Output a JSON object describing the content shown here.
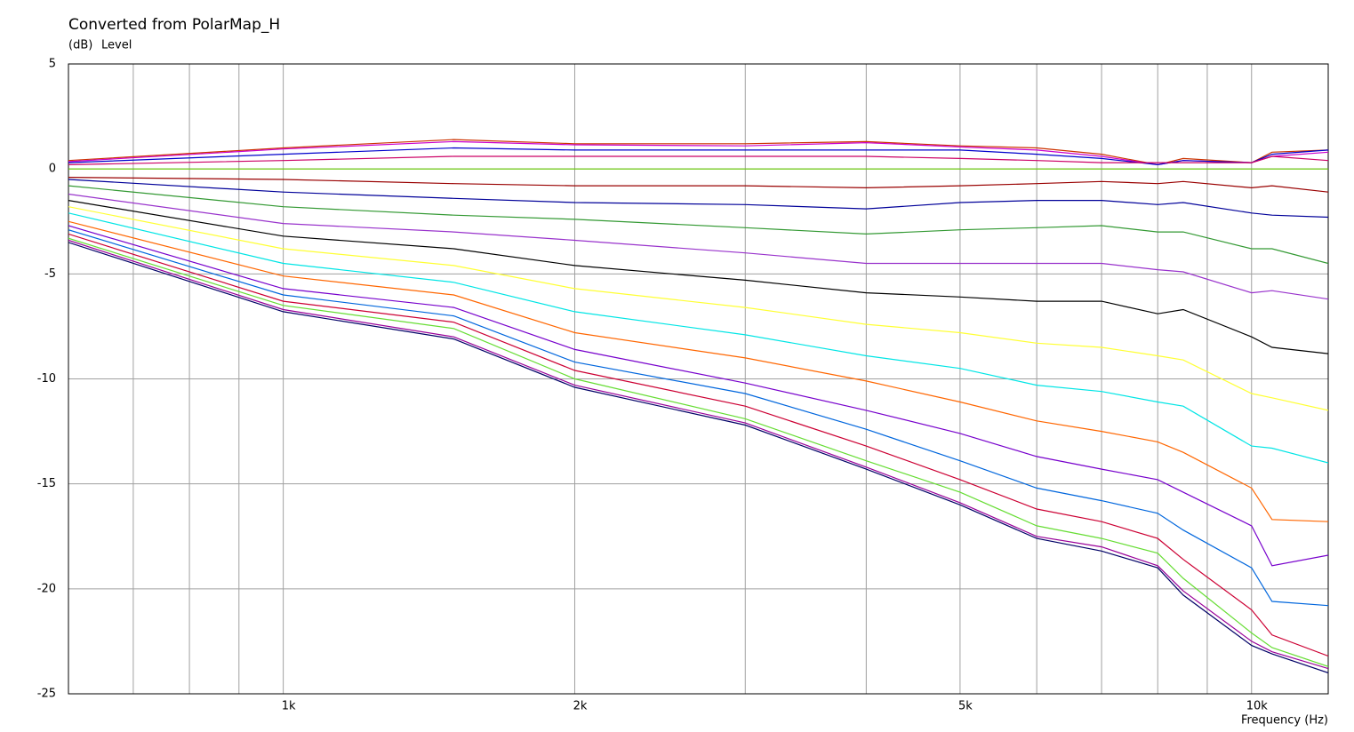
{
  "chart_data": {
    "type": "line",
    "title": "Converted from PolarMap_H",
    "y_unit": "(dB)",
    "y_label": "Level",
    "x_label": "Frequency  (Hz)",
    "xscale": "log",
    "xlim": [
      600,
      12000
    ],
    "xticks": [
      {
        "value": 1000,
        "label": "1k"
      },
      {
        "value": 2000,
        "label": "2k"
      },
      {
        "value": 5000,
        "label": "5k"
      },
      {
        "value": 10000,
        "label": "10k"
      }
    ],
    "xminor": [
      700,
      800,
      900,
      3000,
      4000,
      6000,
      7000,
      8000,
      9000
    ],
    "ylim": [
      -25,
      5
    ],
    "yticks": [
      5,
      0,
      -5,
      -10,
      -15,
      -20,
      -25
    ],
    "grid": true,
    "x": [
      600,
      1000,
      1500,
      2000,
      3000,
      4000,
      5000,
      6000,
      7000,
      8000,
      8500,
      10000,
      10500,
      12000
    ],
    "series": [
      {
        "color": "#cc3300",
        "values": [
          0.4,
          1.0,
          1.4,
          1.2,
          1.2,
          1.3,
          1.1,
          1.0,
          0.7,
          0.2,
          0.5,
          0.3,
          0.8,
          0.9
        ]
      },
      {
        "color": "#cc00cc",
        "values": [
          0.35,
          0.95,
          1.3,
          1.15,
          1.1,
          1.25,
          1.05,
          0.9,
          0.6,
          0.2,
          0.4,
          0.3,
          0.6,
          0.8
        ]
      },
      {
        "color": "#0000cc",
        "values": [
          0.3,
          0.7,
          1.0,
          0.9,
          0.9,
          0.9,
          0.9,
          0.7,
          0.5,
          0.2,
          0.4,
          0.3,
          0.7,
          0.9
        ]
      },
      {
        "color": "#cc0066",
        "values": [
          0.2,
          0.4,
          0.6,
          0.6,
          0.6,
          0.6,
          0.5,
          0.4,
          0.3,
          0.3,
          0.3,
          0.3,
          0.6,
          0.4
        ]
      },
      {
        "color": "#66cc00",
        "values": [
          0,
          0,
          0,
          0,
          0,
          0,
          0,
          0,
          0,
          0,
          0,
          0,
          0,
          0
        ]
      },
      {
        "color": "#990000",
        "values": [
          -0.4,
          -0.5,
          -0.7,
          -0.8,
          -0.8,
          -0.9,
          -0.8,
          -0.7,
          -0.6,
          -0.7,
          -0.6,
          -0.9,
          -0.8,
          -1.1
        ]
      },
      {
        "color": "#000099",
        "values": [
          -0.5,
          -1.1,
          -1.4,
          -1.6,
          -1.7,
          -1.9,
          -1.6,
          -1.5,
          -1.5,
          -1.7,
          -1.6,
          -2.1,
          -2.2,
          -2.3
        ]
      },
      {
        "color": "#339933",
        "values": [
          -0.8,
          -1.8,
          -2.2,
          -2.4,
          -2.8,
          -3.1,
          -2.9,
          -2.8,
          -2.7,
          -3.0,
          -3.0,
          -3.8,
          -3.8,
          -4.5
        ]
      },
      {
        "color": "#9933cc",
        "values": [
          -1.2,
          -2.6,
          -3.0,
          -3.4,
          -4.0,
          -4.5,
          -4.5,
          -4.5,
          -4.5,
          -4.8,
          -4.9,
          -5.9,
          -5.8,
          -6.2
        ]
      },
      {
        "color": "#000000",
        "values": [
          -1.5,
          -3.2,
          -3.8,
          -4.6,
          -5.3,
          -5.9,
          -6.1,
          -6.3,
          -6.3,
          -6.9,
          -6.7,
          -8.0,
          -8.5,
          -8.8
        ]
      },
      {
        "color": "#ffff33",
        "values": [
          -1.8,
          -3.8,
          -4.6,
          -5.7,
          -6.6,
          -7.4,
          -7.8,
          -8.3,
          -8.5,
          -8.9,
          -9.1,
          -10.7,
          -10.9,
          -11.5
        ]
      },
      {
        "color": "#00e5e5",
        "values": [
          -2.1,
          -4.5,
          -5.4,
          -6.8,
          -7.9,
          -8.9,
          -9.5,
          -10.3,
          -10.6,
          -11.1,
          -11.3,
          -13.2,
          -13.3,
          -14.0
        ]
      },
      {
        "color": "#ff6600",
        "values": [
          -2.5,
          -5.1,
          -6.0,
          -7.8,
          -9.0,
          -10.1,
          -11.1,
          -12.0,
          -12.5,
          -13.0,
          -13.5,
          -15.2,
          -16.7,
          -16.8
        ]
      },
      {
        "color": "#7700cc",
        "values": [
          -2.7,
          -5.7,
          -6.6,
          -8.6,
          -10.2,
          -11.5,
          -12.6,
          -13.7,
          -14.3,
          -14.8,
          -15.4,
          -17.0,
          -18.9,
          -18.4
        ]
      },
      {
        "color": "#0066dd",
        "values": [
          -2.9,
          -6.0,
          -7.0,
          -9.2,
          -10.7,
          -12.4,
          -13.9,
          -15.2,
          -15.8,
          -16.4,
          -17.2,
          -19.0,
          -20.6,
          -20.8
        ]
      },
      {
        "color": "#cc0033",
        "values": [
          -3.1,
          -6.3,
          -7.3,
          -9.6,
          -11.3,
          -13.2,
          -14.8,
          -16.2,
          -16.8,
          -17.6,
          -18.6,
          -21.0,
          -22.2,
          -23.2
        ]
      },
      {
        "color": "#66dd33",
        "values": [
          -3.3,
          -6.5,
          -7.6,
          -10.0,
          -11.9,
          -13.9,
          -15.4,
          -17.0,
          -17.6,
          -18.3,
          -19.5,
          -22.1,
          -22.8,
          -23.7
        ]
      },
      {
        "color": "#990099",
        "values": [
          -3.4,
          -6.7,
          -8.0,
          -10.3,
          -12.1,
          -14.2,
          -15.9,
          -17.5,
          -18.0,
          -18.9,
          -20.1,
          -22.5,
          -23.0,
          -23.8
        ]
      },
      {
        "color": "#000066",
        "values": [
          -3.5,
          -6.8,
          -8.1,
          -10.4,
          -12.2,
          -14.3,
          -16.0,
          -17.6,
          -18.2,
          -19.0,
          -20.3,
          -22.7,
          -23.1,
          -24.0
        ]
      }
    ]
  }
}
